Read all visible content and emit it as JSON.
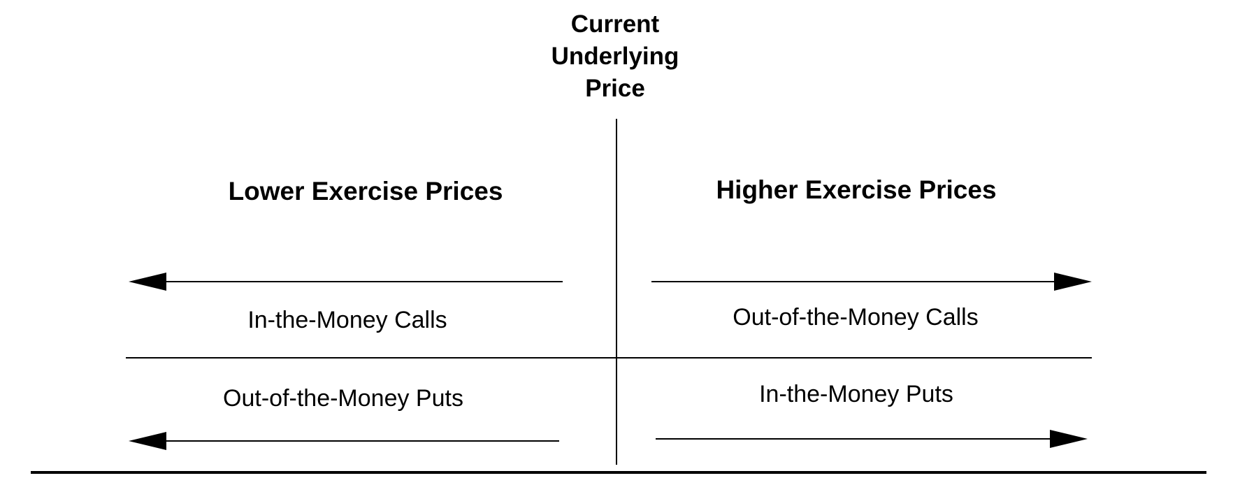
{
  "center": {
    "title": "Current\nUnderlying\nPrice"
  },
  "left": {
    "heading": "Lower Exercise Prices",
    "upper_label": "In-the-Money Calls",
    "lower_label": "Out-of-the-Money Puts"
  },
  "right": {
    "heading": "Higher Exercise Prices",
    "upper_label": "Out-of-the-Money Calls",
    "lower_label": "In-the-Money Puts"
  }
}
